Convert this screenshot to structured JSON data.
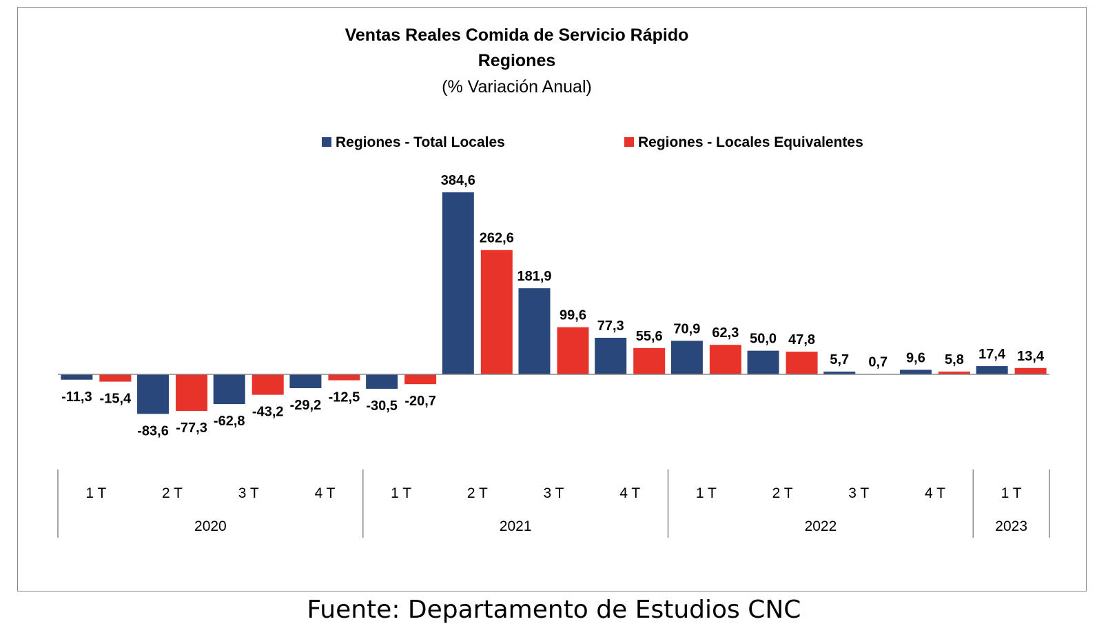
{
  "chart_data": {
    "type": "bar",
    "title": "Ventas Reales Comida de Servicio Rápido",
    "title_line2": "Regiones",
    "subtitle": "(% Variación Anual)",
    "legend_position": "top",
    "grid": false,
    "ylim": [
      -100,
      400
    ],
    "categories": [
      "1 T",
      "2 T",
      "3 T",
      "4 T",
      "1 T",
      "2 T",
      "3 T",
      "4 T",
      "1 T",
      "2 T",
      "3 T",
      "4 T",
      "1 T"
    ],
    "years": [
      {
        "label": "2020",
        "count": 4
      },
      {
        "label": "2021",
        "count": 4
      },
      {
        "label": "2022",
        "count": 4
      },
      {
        "label": "2023",
        "count": 1
      }
    ],
    "series": [
      {
        "name": "Regiones - Total Locales",
        "color": "#2a477b",
        "values": [
          -11.3,
          -83.6,
          -62.8,
          -29.2,
          -30.5,
          384.6,
          181.9,
          77.3,
          70.9,
          50.0,
          5.7,
          9.6,
          17.4
        ],
        "labels": [
          "-11,3",
          "-83,6",
          "-62,8",
          "-29,2",
          "-30,5",
          "384,6",
          "181,9",
          "77,3",
          "70,9",
          "50,0",
          "5,7",
          "9,6",
          "17,4"
        ]
      },
      {
        "name": "Regiones - Locales Equivalentes",
        "color": "#e8332a",
        "values": [
          -15.4,
          -77.3,
          -43.2,
          -12.5,
          -20.7,
          262.6,
          99.6,
          55.6,
          62.3,
          47.8,
          0.7,
          5.8,
          13.4
        ],
        "labels": [
          "-15,4",
          "-77,3",
          "-43,2",
          "-12,5",
          "-20,7",
          "262,6",
          "99,6",
          "55,6",
          "62,3",
          "47,8",
          "0,7",
          "5,8",
          "13,4"
        ]
      }
    ]
  },
  "source": "Fuente: Departamento de Estudios CNC"
}
